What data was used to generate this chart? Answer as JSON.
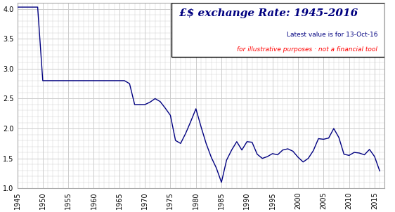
{
  "title_line1": "£$ exchange Rate: 1945-2016",
  "subtitle_line1": "Latest value is for 13-Oct-16",
  "subtitle_line2": "for illustrative purposes · not a financial tool",
  "line_color": "#000080",
  "background_color": "#ffffff",
  "grid_color": "#cccccc",
  "xlim": [
    1945,
    2017
  ],
  "ylim": [
    1.0,
    4.1
  ],
  "yticks": [
    1.0,
    1.5,
    2.0,
    2.5,
    3.0,
    3.5,
    4.0
  ],
  "xticks": [
    1945,
    1950,
    1955,
    1960,
    1965,
    1970,
    1975,
    1980,
    1985,
    1990,
    1995,
    2000,
    2005,
    2010,
    2015
  ],
  "years": [
    1945,
    1946,
    1947,
    1948,
    1949,
    1950,
    1951,
    1952,
    1953,
    1954,
    1955,
    1956,
    1957,
    1958,
    1959,
    1960,
    1961,
    1962,
    1963,
    1964,
    1965,
    1966,
    1967,
    1968,
    1969,
    1970,
    1971,
    1972,
    1973,
    1974,
    1975,
    1976,
    1977,
    1978,
    1979,
    1980,
    1981,
    1982,
    1983,
    1984,
    1985,
    1986,
    1987,
    1988,
    1989,
    1990,
    1991,
    1992,
    1993,
    1994,
    1995,
    1996,
    1997,
    1998,
    1999,
    2000,
    2001,
    2002,
    2003,
    2004,
    2005,
    2006,
    2007,
    2008,
    2009,
    2010,
    2011,
    2012,
    2013,
    2014,
    2015,
    2016
  ],
  "rates": [
    4.03,
    4.03,
    4.03,
    4.03,
    4.03,
    2.8,
    2.8,
    2.8,
    2.8,
    2.8,
    2.8,
    2.8,
    2.8,
    2.8,
    2.8,
    2.8,
    2.8,
    2.8,
    2.8,
    2.8,
    2.8,
    2.8,
    2.75,
    2.4,
    2.4,
    2.4,
    2.44,
    2.5,
    2.45,
    2.34,
    2.22,
    1.8,
    1.75,
    1.92,
    2.12,
    2.33,
    2.03,
    1.75,
    1.52,
    1.34,
    1.1,
    1.47,
    1.64,
    1.78,
    1.64,
    1.78,
    1.77,
    1.57,
    1.5,
    1.53,
    1.58,
    1.56,
    1.64,
    1.66,
    1.62,
    1.52,
    1.44,
    1.5,
    1.63,
    1.83,
    1.82,
    1.84,
    2.0,
    1.85,
    1.57,
    1.55,
    1.6,
    1.59,
    1.56,
    1.65,
    1.53,
    1.29
  ]
}
